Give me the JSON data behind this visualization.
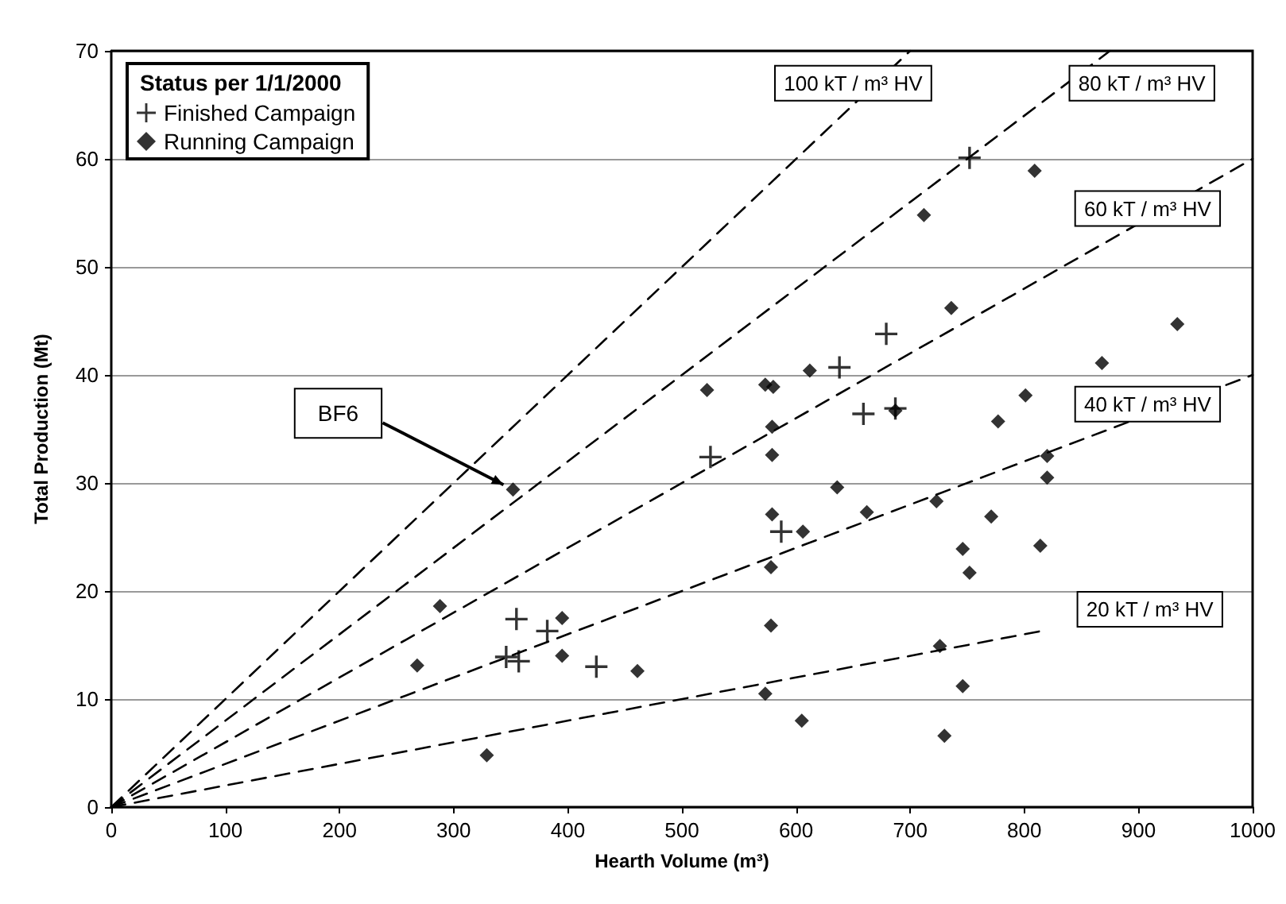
{
  "chart_data": {
    "type": "scatter",
    "xlabel": "Hearth Volume (m³)",
    "ylabel": "Total Production (Mt)",
    "legend_title": "Status per 1/1/2000",
    "xlim": [
      0,
      1000
    ],
    "xticks": [
      0,
      100,
      200,
      300,
      400,
      500,
      600,
      700,
      800,
      900,
      1000
    ],
    "ylim": [
      0,
      70
    ],
    "yticks": [
      0,
      10,
      20,
      30,
      40,
      50,
      60,
      70
    ],
    "grid": "y",
    "legend": "top left",
    "annotations": [
      {
        "text": "BF6",
        "x": 352,
        "y": 29.4
      }
    ],
    "series": [
      {
        "name": "Finished Campaign",
        "color": "#000000",
        "marker": "cross",
        "x": [
          355,
          346,
          357,
          382,
          425,
          525,
          587,
          638,
          659,
          679,
          687,
          752
        ],
        "values": [
          17.4,
          13.9,
          13.5,
          16.3,
          13.0,
          32.4,
          25.5,
          40.7,
          36.4,
          43.8,
          36.9,
          60.1
        ]
      },
      {
        "name": "Running Campaign",
        "color": "#000000",
        "marker": "diamond",
        "x": [
          268,
          288,
          329,
          352,
          395,
          395,
          461,
          522,
          573,
          580,
          612,
          579,
          579,
          579,
          606,
          578,
          578,
          573,
          605,
          636,
          662,
          687,
          712,
          736,
          723,
          726,
          730,
          746,
          752,
          746,
          771,
          777,
          801,
          809,
          814,
          820,
          820,
          868,
          934
        ],
        "values": [
          13.1,
          18.6,
          4.8,
          29.4,
          17.5,
          14.0,
          12.6,
          38.6,
          39.1,
          38.9,
          40.4,
          35.2,
          32.6,
          27.1,
          25.5,
          22.2,
          16.8,
          10.5,
          8.0,
          29.6,
          27.3,
          36.7,
          54.8,
          46.2,
          28.3,
          14.9,
          6.6,
          23.9,
          21.7,
          11.2,
          26.9,
          35.7,
          38.1,
          58.9,
          24.2,
          32.5,
          30.5,
          41.1,
          44.7
        ]
      },
      {
        "name": "100 kT / m³ HV",
        "type": "line",
        "color": "#000000",
        "marker": "none",
        "line_style": "dashed",
        "x": [
          0,
          700
        ],
        "values": [
          0,
          70
        ]
      },
      {
        "name": "80 kT / m³ HV",
        "type": "line",
        "color": "#000000",
        "marker": "none",
        "line_style": "dashed",
        "x": [
          0,
          875
        ],
        "values": [
          0,
          70
        ]
      },
      {
        "name": "60 kT / m³ HV",
        "type": "line",
        "color": "#000000",
        "marker": "none",
        "line_style": "dashed",
        "x": [
          0,
          1000
        ],
        "values": [
          0,
          60
        ]
      },
      {
        "name": "40 kT / m³ HV",
        "type": "line",
        "color": "#000000",
        "marker": "none",
        "line_style": "dashed",
        "x": [
          0,
          1000
        ],
        "values": [
          0,
          40
        ]
      },
      {
        "name": "20 kT / m³ HV",
        "type": "line",
        "color": "#000000",
        "marker": "none",
        "line_style": "dashed",
        "x": [
          0,
          815
        ],
        "values": [
          0,
          16.3
        ]
      }
    ]
  }
}
